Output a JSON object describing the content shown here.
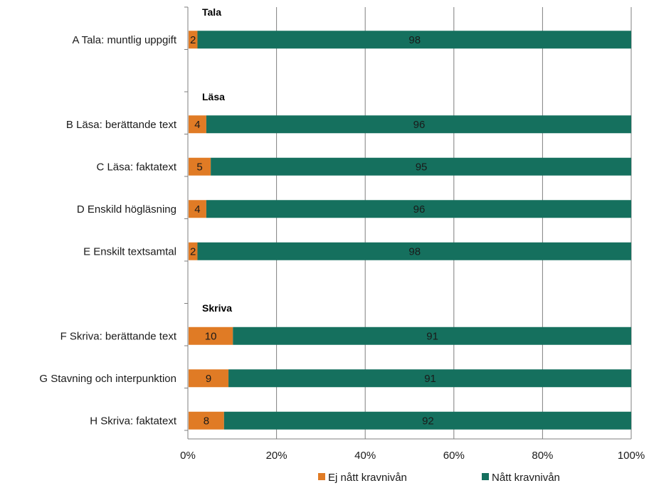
{
  "chart_data": {
    "type": "bar",
    "orientation": "horizontal",
    "stacked": true,
    "percent": true,
    "groups": [
      {
        "label": "Tala",
        "categories": [
          "A Tala: muntlig uppgift"
        ]
      },
      {
        "label": "Läsa",
        "categories": [
          "B Läsa: berättande text",
          "C Läsa: faktatext",
          "D Enskild högläsning",
          "E Enskilt textsamtal"
        ]
      },
      {
        "label": "Skriva",
        "categories": [
          "F Skriva: berättande text",
          "G Stavning och interpunktion",
          "H Skriva: faktatext"
        ]
      }
    ],
    "categories": [
      "A Tala: muntlig uppgift",
      "B Läsa: berättande text",
      "C Läsa: faktatext",
      "D Enskild högläsning",
      "E Enskilt textsamtal",
      "F Skriva: berättande text",
      "G Stavning och interpunktion",
      "H Skriva: faktatext"
    ],
    "series": [
      {
        "name": "Ej nått kravnivån",
        "color": "#e07b25",
        "values": [
          2,
          4,
          5,
          4,
          2,
          10,
          9,
          8
        ]
      },
      {
        "name": "Nått kravnivån",
        "color": "#15705e",
        "values": [
          98,
          96,
          95,
          96,
          98,
          91,
          91,
          92
        ]
      }
    ],
    "xlim": [
      0,
      100
    ],
    "xticks": [
      "0%",
      "20%",
      "40%",
      "60%",
      "80%",
      "100%"
    ],
    "grid": true,
    "legend_position": "bottom"
  }
}
